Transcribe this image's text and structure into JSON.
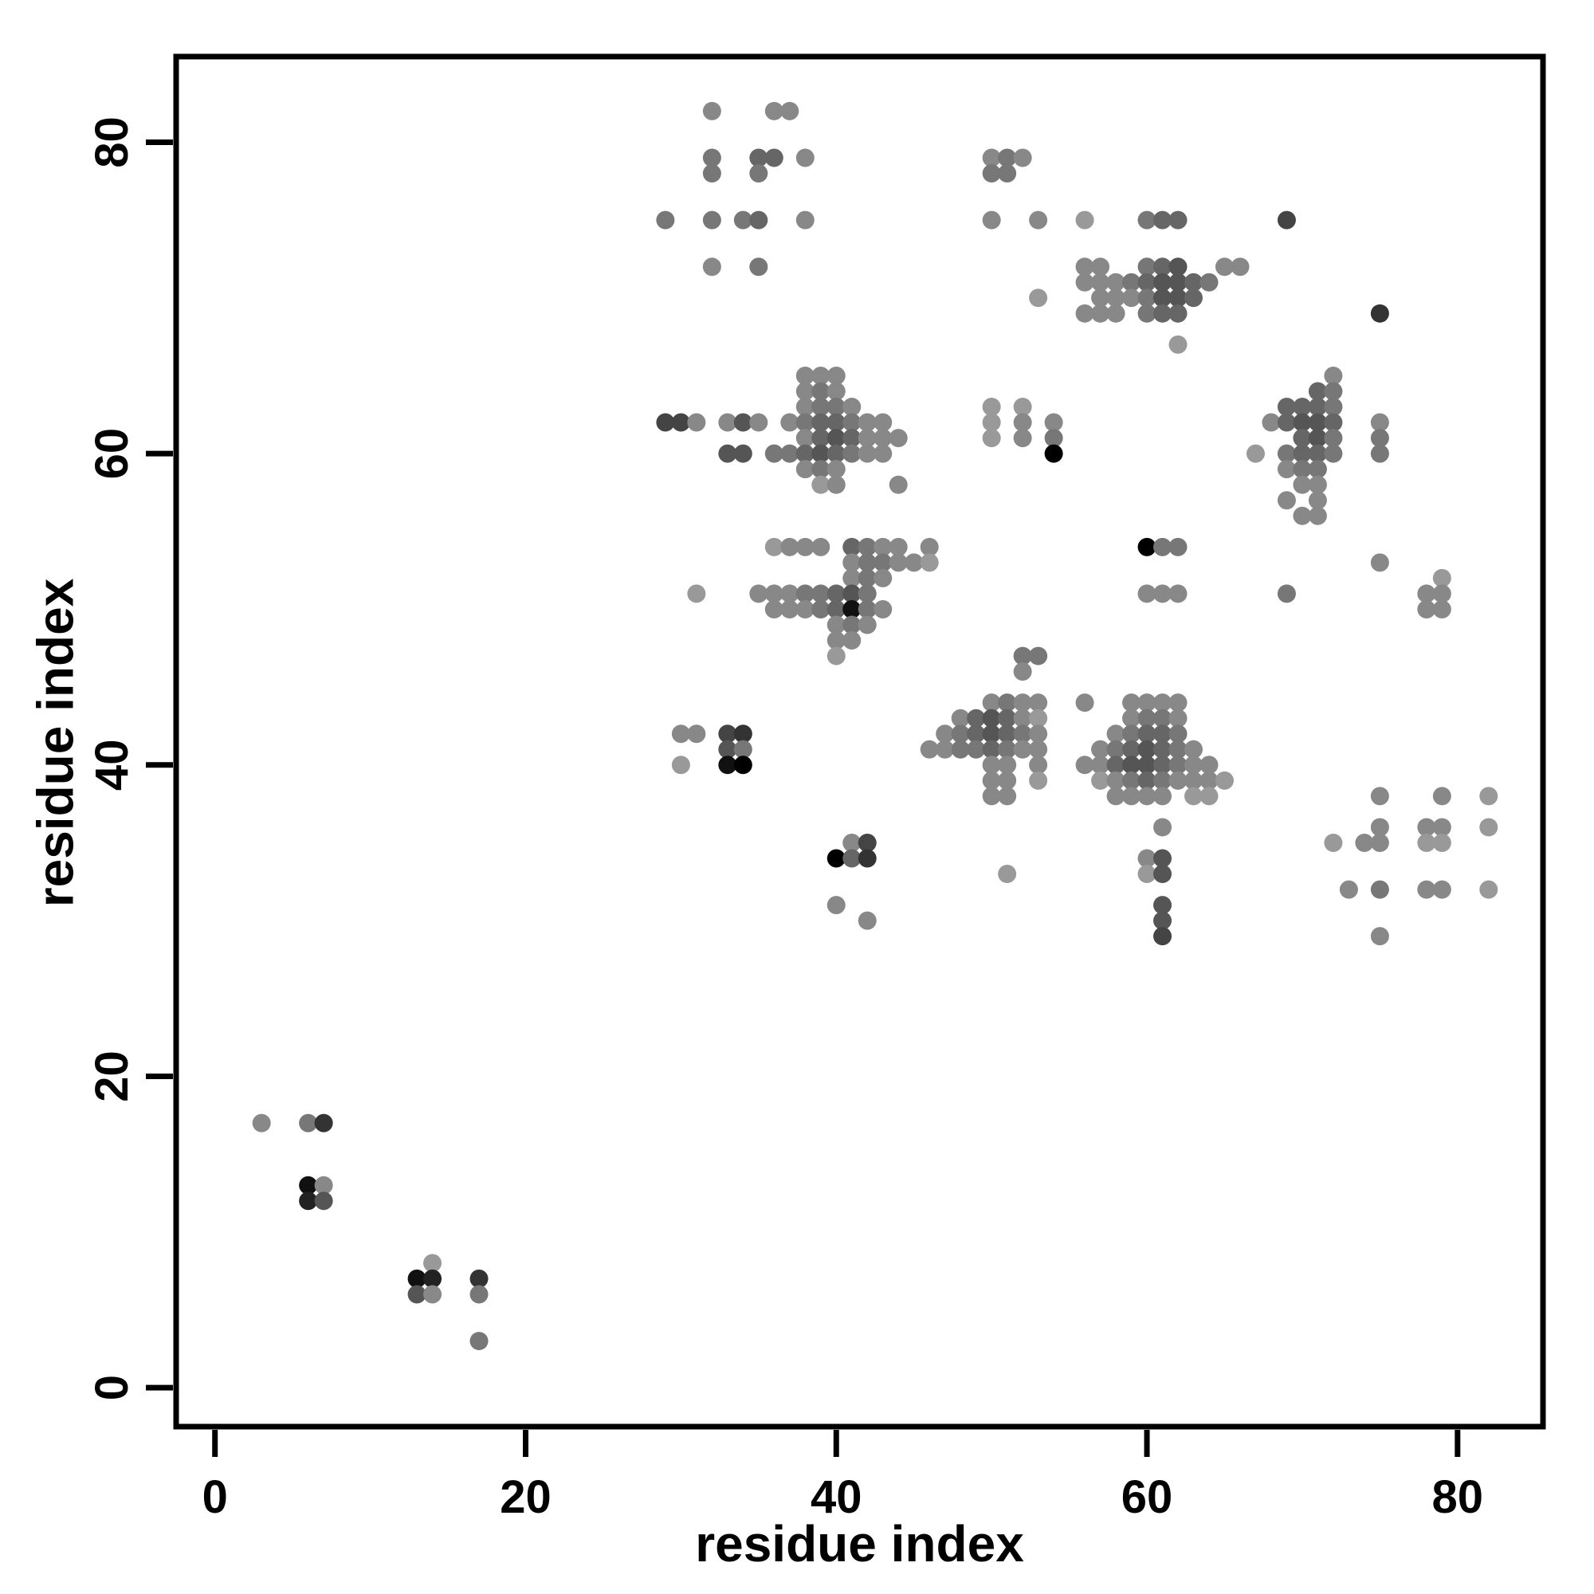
{
  "figure": {
    "background": "#ffffff",
    "frame_color": "#000000"
  },
  "chart_data": {
    "type": "scatter",
    "title": "",
    "xlabel": "residue index",
    "ylabel": "residue index",
    "xlim": [
      -2.5,
      85.5
    ],
    "ylim": [
      -2.5,
      85.5
    ],
    "xticks": [
      0,
      20,
      40,
      60,
      80
    ],
    "yticks": [
      0,
      20,
      40,
      60,
      80
    ],
    "grid": false,
    "legend": false,
    "marker": {
      "shape": "circle",
      "radius_px": 11.5
    },
    "points_format": "[x, y, gray_hex]",
    "points": [
      [
        3,
        17,
        "#888"
      ],
      [
        6,
        17,
        "#777"
      ],
      [
        7,
        17,
        "#333"
      ],
      [
        6,
        13,
        "#111"
      ],
      [
        7,
        13,
        "#888"
      ],
      [
        6,
        12,
        "#222"
      ],
      [
        7,
        12,
        "#555"
      ],
      [
        14,
        8,
        "#999"
      ],
      [
        13,
        7,
        "#111"
      ],
      [
        14,
        7,
        "#222"
      ],
      [
        13,
        6,
        "#555"
      ],
      [
        14,
        6,
        "#888"
      ],
      [
        17,
        7,
        "#333"
      ],
      [
        17,
        6,
        "#777"
      ],
      [
        17,
        3,
        "#777"
      ],
      [
        29,
        62,
        "#444"
      ],
      [
        30,
        62,
        "#444"
      ],
      [
        31,
        62,
        "#888"
      ],
      [
        33,
        62,
        "#888"
      ],
      [
        34,
        62,
        "#555"
      ],
      [
        35,
        62,
        "#888"
      ],
      [
        33,
        60,
        "#555"
      ],
      [
        34,
        60,
        "#555"
      ],
      [
        38,
        65,
        "#888"
      ],
      [
        39,
        65,
        "#888"
      ],
      [
        40,
        65,
        "#888"
      ],
      [
        38,
        64,
        "#888"
      ],
      [
        39,
        64,
        "#777"
      ],
      [
        40,
        64,
        "#888"
      ],
      [
        38,
        63,
        "#888"
      ],
      [
        39,
        63,
        "#777"
      ],
      [
        40,
        63,
        "#777"
      ],
      [
        41,
        63,
        "#888"
      ],
      [
        37,
        62,
        "#888"
      ],
      [
        38,
        62,
        "#777"
      ],
      [
        39,
        62,
        "#666"
      ],
      [
        40,
        62,
        "#666"
      ],
      [
        41,
        62,
        "#777"
      ],
      [
        42,
        62,
        "#888"
      ],
      [
        43,
        62,
        "#888"
      ],
      [
        38,
        61,
        "#888"
      ],
      [
        39,
        61,
        "#666"
      ],
      [
        40,
        61,
        "#555"
      ],
      [
        41,
        61,
        "#666"
      ],
      [
        42,
        61,
        "#888"
      ],
      [
        43,
        61,
        "#888"
      ],
      [
        44,
        61,
        "#888"
      ],
      [
        36,
        60,
        "#777"
      ],
      [
        37,
        60,
        "#777"
      ],
      [
        38,
        60,
        "#666"
      ],
      [
        39,
        60,
        "#555"
      ],
      [
        40,
        60,
        "#666"
      ],
      [
        41,
        60,
        "#777"
      ],
      [
        42,
        60,
        "#888"
      ],
      [
        43,
        60,
        "#888"
      ],
      [
        38,
        59,
        "#888"
      ],
      [
        39,
        59,
        "#777"
      ],
      [
        40,
        59,
        "#888"
      ],
      [
        39,
        58,
        "#999"
      ],
      [
        40,
        58,
        "#888"
      ],
      [
        44,
        58,
        "#888"
      ],
      [
        36,
        54,
        "#999"
      ],
      [
        37,
        54,
        "#888"
      ],
      [
        38,
        54,
        "#888"
      ],
      [
        39,
        54,
        "#888"
      ],
      [
        41,
        54,
        "#666"
      ],
      [
        42,
        54,
        "#777"
      ],
      [
        43,
        54,
        "#888"
      ],
      [
        44,
        54,
        "#888"
      ],
      [
        46,
        54,
        "#888"
      ],
      [
        41,
        53,
        "#888"
      ],
      [
        42,
        53,
        "#777"
      ],
      [
        43,
        53,
        "#777"
      ],
      [
        44,
        53,
        "#888"
      ],
      [
        45,
        53,
        "#888"
      ],
      [
        46,
        53,
        "#999"
      ],
      [
        41,
        52,
        "#888"
      ],
      [
        42,
        52,
        "#777"
      ],
      [
        43,
        52,
        "#888"
      ],
      [
        31,
        51,
        "#999"
      ],
      [
        35,
        51,
        "#888"
      ],
      [
        36,
        51,
        "#888"
      ],
      [
        37,
        51,
        "#888"
      ],
      [
        38,
        51,
        "#777"
      ],
      [
        39,
        51,
        "#777"
      ],
      [
        40,
        51,
        "#666"
      ],
      [
        41,
        51,
        "#555"
      ],
      [
        42,
        51,
        "#777"
      ],
      [
        36,
        50,
        "#888"
      ],
      [
        37,
        50,
        "#888"
      ],
      [
        38,
        50,
        "#888"
      ],
      [
        39,
        50,
        "#777"
      ],
      [
        40,
        50,
        "#666"
      ],
      [
        41,
        50,
        "#111"
      ],
      [
        42,
        50,
        "#777"
      ],
      [
        43,
        50,
        "#888"
      ],
      [
        40,
        49,
        "#888"
      ],
      [
        41,
        49,
        "#777"
      ],
      [
        42,
        49,
        "#888"
      ],
      [
        40,
        48,
        "#888"
      ],
      [
        41,
        48,
        "#888"
      ],
      [
        40,
        47,
        "#999"
      ],
      [
        30,
        42,
        "#888"
      ],
      [
        31,
        42,
        "#888"
      ],
      [
        33,
        42,
        "#444"
      ],
      [
        34,
        42,
        "#333"
      ],
      [
        33,
        41,
        "#555"
      ],
      [
        34,
        41,
        "#777"
      ],
      [
        30,
        40,
        "#999"
      ],
      [
        33,
        40,
        "#111"
      ],
      [
        34,
        40,
        "#000"
      ],
      [
        41,
        35,
        "#888"
      ],
      [
        42,
        35,
        "#444"
      ],
      [
        40,
        34,
        "#000"
      ],
      [
        41,
        34,
        "#666"
      ],
      [
        42,
        34,
        "#333"
      ],
      [
        40,
        31,
        "#888"
      ],
      [
        42,
        30,
        "#888"
      ],
      [
        52,
        47,
        "#777"
      ],
      [
        53,
        47,
        "#777"
      ],
      [
        52,
        46,
        "#888"
      ],
      [
        50,
        44,
        "#888"
      ],
      [
        51,
        44,
        "#777"
      ],
      [
        52,
        44,
        "#888"
      ],
      [
        53,
        44,
        "#888"
      ],
      [
        56,
        44,
        "#888"
      ],
      [
        48,
        43,
        "#888"
      ],
      [
        49,
        43,
        "#666"
      ],
      [
        50,
        43,
        "#555"
      ],
      [
        51,
        43,
        "#666"
      ],
      [
        52,
        43,
        "#888"
      ],
      [
        53,
        43,
        "#999"
      ],
      [
        47,
        42,
        "#888"
      ],
      [
        48,
        42,
        "#777"
      ],
      [
        49,
        42,
        "#666"
      ],
      [
        50,
        42,
        "#555"
      ],
      [
        51,
        42,
        "#666"
      ],
      [
        52,
        42,
        "#777"
      ],
      [
        53,
        42,
        "#888"
      ],
      [
        46,
        41,
        "#888"
      ],
      [
        47,
        41,
        "#888"
      ],
      [
        48,
        41,
        "#777"
      ],
      [
        49,
        41,
        "#777"
      ],
      [
        50,
        41,
        "#666"
      ],
      [
        51,
        41,
        "#777"
      ],
      [
        52,
        41,
        "#888"
      ],
      [
        53,
        41,
        "#888"
      ],
      [
        50,
        40,
        "#888"
      ],
      [
        51,
        40,
        "#888"
      ],
      [
        53,
        40,
        "#888"
      ],
      [
        50,
        39,
        "#888"
      ],
      [
        51,
        39,
        "#888"
      ],
      [
        53,
        39,
        "#999"
      ],
      [
        50,
        38,
        "#888"
      ],
      [
        51,
        38,
        "#888"
      ],
      [
        51,
        33,
        "#999"
      ],
      [
        59,
        44,
        "#888"
      ],
      [
        60,
        44,
        "#888"
      ],
      [
        61,
        44,
        "#888"
      ],
      [
        62,
        44,
        "#888"
      ],
      [
        59,
        43,
        "#888"
      ],
      [
        60,
        43,
        "#777"
      ],
      [
        61,
        43,
        "#777"
      ],
      [
        62,
        43,
        "#888"
      ],
      [
        58,
        42,
        "#888"
      ],
      [
        59,
        42,
        "#777"
      ],
      [
        60,
        42,
        "#666"
      ],
      [
        61,
        42,
        "#666"
      ],
      [
        62,
        42,
        "#777"
      ],
      [
        57,
        41,
        "#888"
      ],
      [
        58,
        41,
        "#777"
      ],
      [
        59,
        41,
        "#666"
      ],
      [
        60,
        41,
        "#555"
      ],
      [
        61,
        41,
        "#666"
      ],
      [
        62,
        41,
        "#777"
      ],
      [
        63,
        41,
        "#888"
      ],
      [
        56,
        40,
        "#888"
      ],
      [
        57,
        40,
        "#888"
      ],
      [
        58,
        40,
        "#666"
      ],
      [
        59,
        40,
        "#555"
      ],
      [
        60,
        40,
        "#555"
      ],
      [
        61,
        40,
        "#666"
      ],
      [
        62,
        40,
        "#777"
      ],
      [
        63,
        40,
        "#888"
      ],
      [
        64,
        40,
        "#888"
      ],
      [
        57,
        39,
        "#999"
      ],
      [
        58,
        39,
        "#888"
      ],
      [
        59,
        39,
        "#777"
      ],
      [
        60,
        39,
        "#666"
      ],
      [
        61,
        39,
        "#777"
      ],
      [
        62,
        39,
        "#888"
      ],
      [
        63,
        39,
        "#888"
      ],
      [
        64,
        39,
        "#888"
      ],
      [
        65,
        39,
        "#999"
      ],
      [
        58,
        38,
        "#888"
      ],
      [
        59,
        38,
        "#888"
      ],
      [
        60,
        38,
        "#888"
      ],
      [
        61,
        38,
        "#888"
      ],
      [
        63,
        38,
        "#999"
      ],
      [
        64,
        38,
        "#999"
      ],
      [
        61,
        36,
        "#888"
      ],
      [
        60,
        34,
        "#888"
      ],
      [
        61,
        34,
        "#555"
      ],
      [
        60,
        33,
        "#999"
      ],
      [
        61,
        33,
        "#555"
      ],
      [
        61,
        31,
        "#555"
      ],
      [
        61,
        30,
        "#555"
      ],
      [
        61,
        29,
        "#444"
      ],
      [
        50,
        63,
        "#999"
      ],
      [
        50,
        62,
        "#999"
      ],
      [
        50,
        61,
        "#999"
      ],
      [
        52,
        63,
        "#999"
      ],
      [
        52,
        62,
        "#888"
      ],
      [
        52,
        61,
        "#888"
      ],
      [
        54,
        62,
        "#888"
      ],
      [
        54,
        61,
        "#777"
      ],
      [
        54,
        60,
        "#000"
      ],
      [
        60,
        54,
        "#000"
      ],
      [
        61,
        54,
        "#777"
      ],
      [
        62,
        54,
        "#777"
      ],
      [
        60,
        51,
        "#888"
      ],
      [
        61,
        51,
        "#888"
      ],
      [
        62,
        51,
        "#888"
      ],
      [
        56,
        72,
        "#888"
      ],
      [
        57,
        72,
        "#888"
      ],
      [
        60,
        72,
        "#777"
      ],
      [
        61,
        72,
        "#666"
      ],
      [
        62,
        72,
        "#555"
      ],
      [
        65,
        72,
        "#888"
      ],
      [
        66,
        72,
        "#888"
      ],
      [
        56,
        71,
        "#888"
      ],
      [
        57,
        71,
        "#888"
      ],
      [
        58,
        71,
        "#888"
      ],
      [
        59,
        71,
        "#777"
      ],
      [
        60,
        71,
        "#666"
      ],
      [
        61,
        71,
        "#555"
      ],
      [
        62,
        71,
        "#555"
      ],
      [
        63,
        71,
        "#666"
      ],
      [
        64,
        71,
        "#777"
      ],
      [
        57,
        70,
        "#888"
      ],
      [
        58,
        70,
        "#888"
      ],
      [
        59,
        70,
        "#888"
      ],
      [
        60,
        70,
        "#777"
      ],
      [
        61,
        70,
        "#555"
      ],
      [
        62,
        70,
        "#555"
      ],
      [
        63,
        70,
        "#666"
      ],
      [
        56,
        69,
        "#888"
      ],
      [
        57,
        69,
        "#888"
      ],
      [
        58,
        69,
        "#888"
      ],
      [
        60,
        69,
        "#777"
      ],
      [
        61,
        69,
        "#666"
      ],
      [
        62,
        69,
        "#666"
      ],
      [
        62,
        67,
        "#999"
      ],
      [
        53,
        70,
        "#999"
      ],
      [
        75,
        69,
        "#333"
      ],
      [
        50,
        79,
        "#888"
      ],
      [
        51,
        79,
        "#777"
      ],
      [
        52,
        79,
        "#888"
      ],
      [
        50,
        78,
        "#777"
      ],
      [
        51,
        78,
        "#777"
      ],
      [
        50,
        75,
        "#888"
      ],
      [
        53,
        75,
        "#888"
      ],
      [
        56,
        75,
        "#999"
      ],
      [
        60,
        75,
        "#777"
      ],
      [
        61,
        75,
        "#666"
      ],
      [
        62,
        75,
        "#666"
      ],
      [
        69,
        75,
        "#444"
      ],
      [
        32,
        82,
        "#888"
      ],
      [
        36,
        82,
        "#888"
      ],
      [
        37,
        82,
        "#888"
      ],
      [
        32,
        79,
        "#777"
      ],
      [
        35,
        79,
        "#666"
      ],
      [
        36,
        79,
        "#666"
      ],
      [
        38,
        79,
        "#888"
      ],
      [
        32,
        78,
        "#777"
      ],
      [
        35,
        78,
        "#777"
      ],
      [
        29,
        75,
        "#777"
      ],
      [
        32,
        75,
        "#777"
      ],
      [
        34,
        75,
        "#777"
      ],
      [
        35,
        75,
        "#666"
      ],
      [
        38,
        75,
        "#888"
      ],
      [
        32,
        72,
        "#888"
      ],
      [
        35,
        72,
        "#777"
      ],
      [
        72,
        65,
        "#888"
      ],
      [
        71,
        64,
        "#666"
      ],
      [
        72,
        64,
        "#777"
      ],
      [
        69,
        63,
        "#666"
      ],
      [
        70,
        63,
        "#666"
      ],
      [
        71,
        63,
        "#666"
      ],
      [
        72,
        63,
        "#777"
      ],
      [
        68,
        62,
        "#888"
      ],
      [
        69,
        62,
        "#666"
      ],
      [
        70,
        62,
        "#555"
      ],
      [
        71,
        62,
        "#555"
      ],
      [
        72,
        62,
        "#666"
      ],
      [
        70,
        61,
        "#666"
      ],
      [
        71,
        61,
        "#555"
      ],
      [
        72,
        61,
        "#777"
      ],
      [
        67,
        60,
        "#999"
      ],
      [
        69,
        60,
        "#777"
      ],
      [
        70,
        60,
        "#666"
      ],
      [
        71,
        60,
        "#666"
      ],
      [
        72,
        60,
        "#777"
      ],
      [
        69,
        59,
        "#888"
      ],
      [
        70,
        59,
        "#777"
      ],
      [
        71,
        59,
        "#777"
      ],
      [
        70,
        58,
        "#888"
      ],
      [
        71,
        58,
        "#888"
      ],
      [
        69,
        57,
        "#888"
      ],
      [
        71,
        57,
        "#888"
      ],
      [
        70,
        56,
        "#888"
      ],
      [
        71,
        56,
        "#888"
      ],
      [
        75,
        62,
        "#888"
      ],
      [
        75,
        61,
        "#777"
      ],
      [
        75,
        60,
        "#777"
      ],
      [
        75,
        53,
        "#888"
      ],
      [
        69,
        51,
        "#777"
      ],
      [
        79,
        52,
        "#999"
      ],
      [
        78,
        51,
        "#888"
      ],
      [
        79,
        51,
        "#888"
      ],
      [
        78,
        50,
        "#888"
      ],
      [
        79,
        50,
        "#888"
      ],
      [
        75,
        38,
        "#888"
      ],
      [
        79,
        38,
        "#888"
      ],
      [
        82,
        38,
        "#999"
      ],
      [
        75,
        36,
        "#888"
      ],
      [
        78,
        36,
        "#888"
      ],
      [
        79,
        36,
        "#888"
      ],
      [
        82,
        36,
        "#999"
      ],
      [
        72,
        35,
        "#999"
      ],
      [
        74,
        35,
        "#888"
      ],
      [
        75,
        35,
        "#888"
      ],
      [
        78,
        35,
        "#999"
      ],
      [
        79,
        35,
        "#999"
      ],
      [
        73,
        32,
        "#888"
      ],
      [
        75,
        32,
        "#777"
      ],
      [
        78,
        32,
        "#888"
      ],
      [
        79,
        32,
        "#888"
      ],
      [
        82,
        32,
        "#999"
      ],
      [
        75,
        29,
        "#888"
      ]
    ]
  }
}
